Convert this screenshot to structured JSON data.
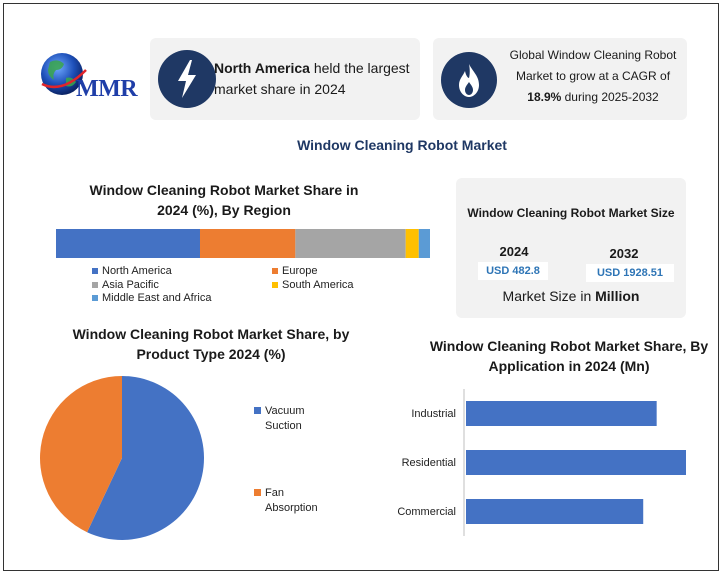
{
  "logo": {
    "text": "MMR"
  },
  "info_cards": [
    {
      "icon": "lightning-icon",
      "bold": "North America",
      "text": " held the largest market share in 2024"
    },
    {
      "icon": "flame-icon",
      "line1": "Global Window Cleaning Robot",
      "line2": "Market to grow at a CAGR of",
      "bold": "18.9%",
      "line3_rest": " during 2025-2032"
    }
  ],
  "main_title": "Window Cleaning Robot Market",
  "market_size": {
    "title": "Window Cleaning Robot Market Size",
    "year1": "2024",
    "value1": "USD 482.8",
    "year2": "2032",
    "value2": "USD 1928.51",
    "footer_prefix": "Market Size in ",
    "footer_bold": "Million"
  },
  "colors": {
    "blue": "#4472c4",
    "orange": "#ed7d31",
    "gray": "#a5a5a5",
    "yellow": "#ffc000",
    "lightblue": "#5b9bd5",
    "navy": "#1f3864"
  },
  "chart_data": [
    {
      "type": "bar",
      "orientation": "horizontal-stacked",
      "title": "Window Cleaning Robot Market Share in 2024 (%), By Region",
      "categories": [
        "Share"
      ],
      "series": [
        {
          "name": "North America",
          "values": [
            38.5
          ]
        },
        {
          "name": "Europe",
          "values": [
            25.5
          ]
        },
        {
          "name": "Asia Pacific",
          "values": [
            29.5
          ]
        },
        {
          "name": "South America",
          "values": [
            3.5
          ]
        },
        {
          "name": "Middle East and Africa",
          "values": [
            3
          ]
        }
      ],
      "legend": "bottom"
    },
    {
      "type": "pie",
      "title": "Window Cleaning Robot Market Share, by Product Type 2024 (%)",
      "categories": [
        "Vacuum Suction",
        "Fan Absorption"
      ],
      "values": [
        57,
        43
      ],
      "legend_labels": [
        [
          "Vacuum",
          "Suction"
        ],
        [
          "Fan",
          "Absorption"
        ]
      ],
      "legend": "right"
    },
    {
      "type": "bar",
      "orientation": "horizontal",
      "title": "Window Cleaning Robot Market Share, By Application in 2024 (Mn)",
      "categories": [
        "Industrial",
        "Residential",
        "Commercial"
      ],
      "values": [
        156,
        180,
        145
      ],
      "xlim": [
        0,
        180
      ]
    }
  ]
}
